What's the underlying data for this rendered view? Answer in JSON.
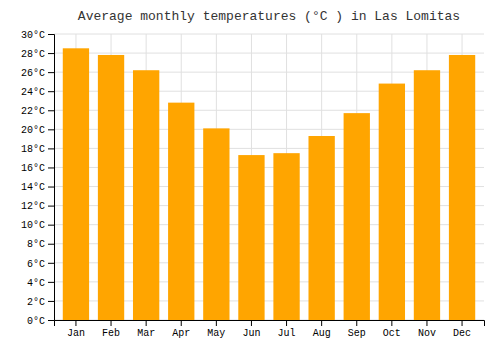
{
  "chart_data": {
    "type": "bar",
    "title": "Average monthly temperatures (°C ) in Las Lomitas",
    "categories": [
      "Jan",
      "Feb",
      "Mar",
      "Apr",
      "May",
      "Jun",
      "Jul",
      "Aug",
      "Sep",
      "Oct",
      "Nov",
      "Dec"
    ],
    "values": [
      28.5,
      27.8,
      26.2,
      22.8,
      20.1,
      17.3,
      17.5,
      19.3,
      21.7,
      24.8,
      26.2,
      27.8
    ],
    "color": "#FFA500",
    "ylim": [
      0,
      30
    ],
    "yticks": [
      {
        "value": 0,
        "label": "0°C"
      },
      {
        "value": 2,
        "label": "2°C"
      },
      {
        "value": 4,
        "label": "4°C"
      },
      {
        "value": 6,
        "label": "6°C"
      },
      {
        "value": 8,
        "label": "8°C"
      },
      {
        "value": 10,
        "label": "10°C"
      },
      {
        "value": 12,
        "label": "12°C"
      },
      {
        "value": 14,
        "label": "14°C"
      },
      {
        "value": 16,
        "label": "16°C"
      },
      {
        "value": 18,
        "label": "18°C"
      },
      {
        "value": 20,
        "label": "20°C"
      },
      {
        "value": 22,
        "label": "22°C"
      },
      {
        "value": 24,
        "label": "24°C"
      },
      {
        "value": 26,
        "label": "26°C"
      },
      {
        "value": 28,
        "label": "28°C"
      },
      {
        "value": 30,
        "label": "30°C"
      }
    ],
    "grid": true
  }
}
